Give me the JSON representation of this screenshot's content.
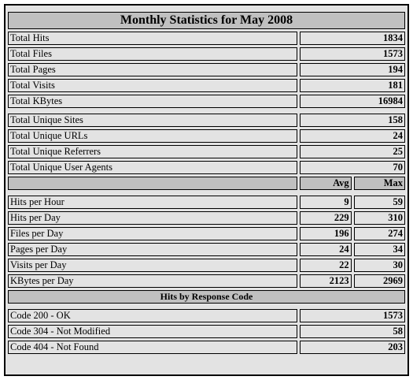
{
  "title": "Monthly Statistics for May 2008",
  "totals": [
    {
      "label": "Total Hits",
      "value": "1834"
    },
    {
      "label": "Total Files",
      "value": "1573"
    },
    {
      "label": "Total Pages",
      "value": "194"
    },
    {
      "label": "Total Visits",
      "value": "181"
    },
    {
      "label": "Total KBytes",
      "value": "16984"
    }
  ],
  "uniques": [
    {
      "label": "Total Unique Sites",
      "value": "158"
    },
    {
      "label": "Total Unique URLs",
      "value": "24"
    },
    {
      "label": "Total Unique Referrers",
      "value": "25"
    },
    {
      "label": "Total Unique User Agents",
      "value": "70"
    }
  ],
  "rates_header": {
    "avg": "Avg",
    "max": "Max"
  },
  "rates": [
    {
      "label": "Hits per Hour",
      "avg": "9",
      "max": "59"
    },
    {
      "label": "Hits per Day",
      "avg": "229",
      "max": "310"
    },
    {
      "label": "Files per Day",
      "avg": "196",
      "max": "274"
    },
    {
      "label": "Pages per Day",
      "avg": "24",
      "max": "34"
    },
    {
      "label": "Visits per Day",
      "avg": "22",
      "max": "30"
    },
    {
      "label": "KBytes per Day",
      "avg": "2123",
      "max": "2969"
    }
  ],
  "response_section": "Hits by Response Code",
  "response_codes": [
    {
      "label": "Code 200 - OK",
      "value": "1573"
    },
    {
      "label": "Code 304 - Not Modified",
      "value": "58"
    },
    {
      "label": "Code 404 - Not Found",
      "value": "203"
    }
  ]
}
